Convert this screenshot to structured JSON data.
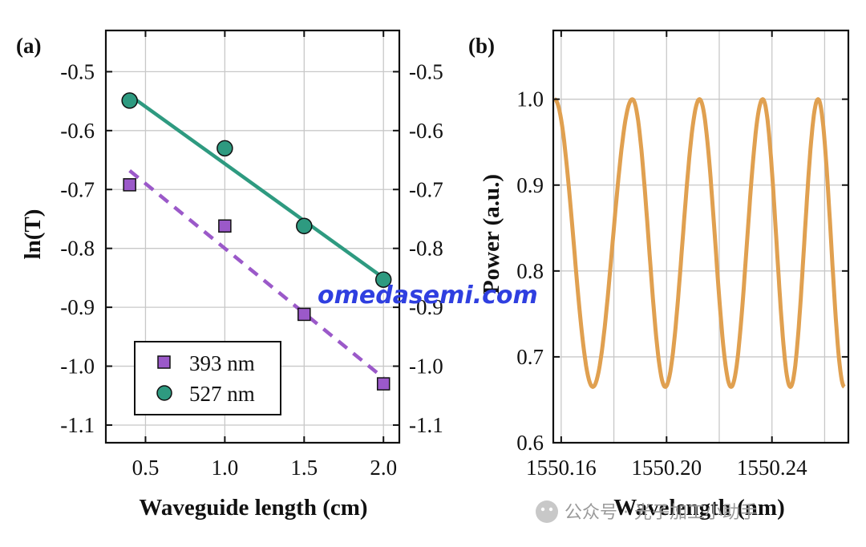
{
  "chart_data": [
    {
      "panel": "(a)",
      "type": "scatter",
      "xlabel": "Waveguide length (cm)",
      "ylabel": "ln(T)",
      "xlim": [
        0.25,
        2.1
      ],
      "ylim": [
        -1.13,
        -0.43
      ],
      "xticks": [
        "0.5",
        "1.0",
        "1.5",
        "2.0"
      ],
      "xtick_values": [
        0.5,
        1.0,
        1.5,
        2.0
      ],
      "yticks": [
        "-0.5",
        "-0.6",
        "-0.7",
        "-0.8",
        "-0.9",
        "-1.0",
        "-1.1"
      ],
      "ytick_values": [
        -0.5,
        -0.6,
        -0.7,
        -0.8,
        -0.9,
        -1.0,
        -1.1
      ],
      "grid": true,
      "legend_position": "bottom-left",
      "series": [
        {
          "name": "393 nm",
          "color": "#9b59c9",
          "marker": "square",
          "x": [
            0.4,
            1.0,
            1.5,
            2.0
          ],
          "y": [
            -0.692,
            -0.762,
            -0.912,
            -1.03
          ],
          "fit": {
            "style": "dashed",
            "x": [
              0.4,
              2.0
            ],
            "y": [
              -0.668,
              -1.02
            ]
          }
        },
        {
          "name": "527 nm",
          "color": "#2e9a80",
          "marker": "circle",
          "x": [
            0.4,
            1.0,
            1.5,
            2.0
          ],
          "y": [
            -0.549,
            -0.63,
            -0.762,
            -0.853
          ],
          "fit": {
            "style": "solid",
            "x": [
              0.4,
              2.0
            ],
            "y": [
              -0.54,
              -0.85
            ]
          }
        }
      ]
    },
    {
      "panel": "(b)",
      "type": "line",
      "xlabel": "Wavelength (nm)",
      "ylabel": "Power (a.u.)",
      "xlim": [
        1550.157,
        1550.269
      ],
      "ylim": [
        0.6,
        1.08
      ],
      "xticks": [
        "1550.16",
        "1550.20",
        "1550.24"
      ],
      "xtick_values": [
        1550.16,
        1550.2,
        1550.24
      ],
      "yticks": [
        "0.6",
        "0.7",
        "0.8",
        "0.9",
        "1.0"
      ],
      "ytick_values": [
        0.6,
        0.7,
        0.8,
        0.9,
        1.0
      ],
      "grid": true,
      "series": [
        {
          "name": "Power",
          "color": "#e0a050",
          "description": "raised-cosine fringes with decreasing period",
          "min": 0.665,
          "max": 1.0,
          "peaks_x": [
            1550.1575,
            1550.187,
            1550.2125,
            1550.2365,
            1550.2575
          ],
          "troughs_x": [
            1550.172,
            1550.1995,
            1550.2245,
            1550.247
          ]
        }
      ]
    }
  ],
  "overlays": {
    "watermark": "omedasemi.com",
    "wechat_caption": "公众号 · 光子加工小助手"
  }
}
